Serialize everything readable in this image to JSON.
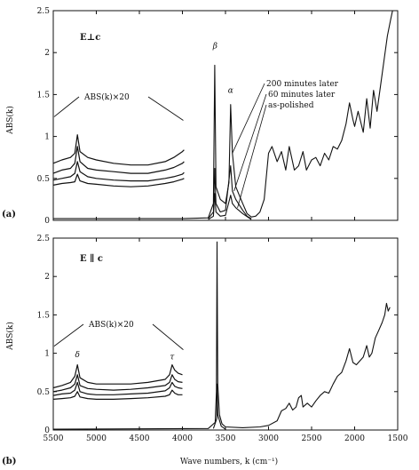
{
  "chart_data": [
    {
      "type": "line",
      "panel_label": "(a)",
      "annotation": "E⊥c",
      "inset_label": "ABS(k)×20",
      "ylabel": "ABS(k)",
      "xlim": [
        5500,
        1500
      ],
      "ylim": [
        0,
        2.5
      ],
      "x_ticks": [
        5500,
        5000,
        4500,
        4000,
        3500,
        3000,
        2500,
        2000,
        1500
      ],
      "y_ticks": [
        "0",
        "0.5",
        "1",
        "1.5",
        "2",
        "2.5"
      ],
      "peak_labels": [
        {
          "text": "β",
          "x": 3620,
          "y": 2.05
        },
        {
          "text": "α",
          "x": 3440,
          "y": 1.52
        }
      ],
      "curve_labels": [
        "200 minutes later",
        "60 minutes later",
        "as-polished"
      ],
      "series": [
        {
          "values": [
            [
              5500,
              0.02
            ],
            [
              4000,
              0.02
            ],
            [
              3700,
              0.03
            ],
            [
              3640,
              0.2
            ],
            [
              3625,
              1.85
            ],
            [
              3610,
              0.4
            ],
            [
              3560,
              0.25
            ],
            [
              3500,
              0.2
            ],
            [
              3460,
              0.45
            ],
            [
              3440,
              1.38
            ],
            [
              3420,
              0.8
            ],
            [
              3380,
              0.4
            ],
            [
              3300,
              0.2
            ],
            [
              3250,
              0.08
            ],
            [
              3200,
              0.04
            ],
            [
              3150,
              0.05
            ],
            [
              3100,
              0.1
            ],
            [
              3050,
              0.25
            ],
            [
              3000,
              0.8
            ],
            [
              2960,
              0.88
            ],
            [
              2900,
              0.7
            ],
            [
              2850,
              0.82
            ],
            [
              2800,
              0.6
            ],
            [
              2760,
              0.88
            ],
            [
              2700,
              0.6
            ],
            [
              2650,
              0.65
            ],
            [
              2600,
              0.82
            ],
            [
              2560,
              0.6
            ],
            [
              2500,
              0.72
            ],
            [
              2450,
              0.75
            ],
            [
              2400,
              0.65
            ],
            [
              2350,
              0.8
            ],
            [
              2300,
              0.72
            ],
            [
              2250,
              0.88
            ],
            [
              2200,
              0.85
            ],
            [
              2150,
              0.95
            ],
            [
              2100,
              1.15
            ],
            [
              2060,
              1.4
            ],
            [
              2020,
              1.2
            ],
            [
              2000,
              1.12
            ],
            [
              1960,
              1.3
            ],
            [
              1900,
              1.05
            ],
            [
              1860,
              1.45
            ],
            [
              1820,
              1.1
            ],
            [
              1780,
              1.55
            ],
            [
              1740,
              1.3
            ],
            [
              1700,
              1.6
            ],
            [
              1660,
              1.9
            ],
            [
              1620,
              2.2
            ],
            [
              1580,
              2.4
            ],
            [
              1560,
              2.5
            ]
          ]
        },
        {
          "values": [
            [
              3700,
              0.02
            ],
            [
              3640,
              0.1
            ],
            [
              3625,
              0.62
            ],
            [
              3610,
              0.2
            ],
            [
              3560,
              0.1
            ],
            [
              3500,
              0.12
            ],
            [
              3440,
              0.65
            ],
            [
              3420,
              0.35
            ],
            [
              3380,
              0.25
            ],
            [
              3300,
              0.12
            ],
            [
              3250,
              0.05
            ],
            [
              3200,
              0.02
            ]
          ]
        },
        {
          "values": [
            [
              3700,
              0.01
            ],
            [
              3640,
              0.05
            ],
            [
              3625,
              0.32
            ],
            [
              3610,
              0.1
            ],
            [
              3560,
              0.05
            ],
            [
              3500,
              0.06
            ],
            [
              3440,
              0.3
            ],
            [
              3420,
              0.2
            ],
            [
              3380,
              0.15
            ],
            [
              3300,
              0.08
            ],
            [
              3200,
              0.01
            ]
          ]
        }
      ],
      "inset_series": [
        {
          "values": [
            [
              5500,
              0.68
            ],
            [
              5400,
              0.72
            ],
            [
              5300,
              0.75
            ],
            [
              5250,
              0.8
            ],
            [
              5220,
              1.02
            ],
            [
              5190,
              0.82
            ],
            [
              5100,
              0.75
            ],
            [
              5000,
              0.72
            ],
            [
              4800,
              0.68
            ],
            [
              4600,
              0.66
            ],
            [
              4400,
              0.66
            ],
            [
              4200,
              0.7
            ],
            [
              4100,
              0.75
            ],
            [
              4000,
              0.82
            ],
            [
              3980,
              0.84
            ]
          ]
        },
        {
          "values": [
            [
              5500,
              0.56
            ],
            [
              5400,
              0.6
            ],
            [
              5300,
              0.62
            ],
            [
              5250,
              0.68
            ],
            [
              5220,
              0.88
            ],
            [
              5190,
              0.7
            ],
            [
              5100,
              0.62
            ],
            [
              5000,
              0.6
            ],
            [
              4800,
              0.58
            ],
            [
              4600,
              0.56
            ],
            [
              4400,
              0.56
            ],
            [
              4200,
              0.6
            ],
            [
              4100,
              0.63
            ],
            [
              4000,
              0.68
            ],
            [
              3980,
              0.7
            ]
          ]
        },
        {
          "values": [
            [
              5500,
              0.48
            ],
            [
              5400,
              0.5
            ],
            [
              5300,
              0.52
            ],
            [
              5250,
              0.56
            ],
            [
              5220,
              0.7
            ],
            [
              5190,
              0.58
            ],
            [
              5100,
              0.52
            ],
            [
              5000,
              0.5
            ],
            [
              4800,
              0.48
            ],
            [
              4600,
              0.47
            ],
            [
              4400,
              0.47
            ],
            [
              4200,
              0.5
            ],
            [
              4100,
              0.52
            ],
            [
              4000,
              0.55
            ],
            [
              3980,
              0.57
            ]
          ]
        },
        {
          "values": [
            [
              5500,
              0.42
            ],
            [
              5400,
              0.44
            ],
            [
              5300,
              0.45
            ],
            [
              5250,
              0.46
            ],
            [
              5220,
              0.55
            ],
            [
              5190,
              0.47
            ],
            [
              5100,
              0.44
            ],
            [
              5000,
              0.43
            ],
            [
              4800,
              0.41
            ],
            [
              4600,
              0.4
            ],
            [
              4400,
              0.41
            ],
            [
              4200,
              0.44
            ],
            [
              4100,
              0.46
            ],
            [
              4000,
              0.49
            ],
            [
              3980,
              0.5
            ]
          ]
        }
      ]
    },
    {
      "type": "line",
      "panel_label": "(b)",
      "annotation": "E ∥ c",
      "inset_label": "ABS(k)×20",
      "ylabel": "ABS(k)",
      "xlabel": "Wave numbers, k (cm⁻¹)",
      "xlim": [
        5500,
        1500
      ],
      "ylim": [
        0,
        2.5
      ],
      "x_ticks": [
        5500,
        5000,
        4500,
        4000,
        3500,
        3000,
        2500,
        2000,
        1500
      ],
      "y_ticks": [
        "0",
        "0.5",
        "1",
        "1.5",
        "2",
        "2.5"
      ],
      "peak_labels": [
        {
          "text": "δ",
          "x": 5220,
          "y": 0.95
        },
        {
          "text": "τ",
          "x": 4120,
          "y": 0.92
        }
      ],
      "series": [
        {
          "values": [
            [
              5500,
              0.01
            ],
            [
              3700,
              0.02
            ],
            [
              3620,
              0.1
            ],
            [
              3605,
              0.5
            ],
            [
              3598,
              2.45
            ],
            [
              3590,
              0.6
            ],
            [
              3570,
              0.2
            ],
            [
              3540,
              0.08
            ],
            [
              3500,
              0.04
            ],
            [
              3300,
              0.03
            ],
            [
              3100,
              0.04
            ],
            [
              3000,
              0.06
            ],
            [
              2900,
              0.12
            ],
            [
              2850,
              0.25
            ],
            [
              2800,
              0.28
            ],
            [
              2760,
              0.35
            ],
            [
              2720,
              0.26
            ],
            [
              2680,
              0.3
            ],
            [
              2650,
              0.42
            ],
            [
              2620,
              0.45
            ],
            [
              2600,
              0.3
            ],
            [
              2550,
              0.35
            ],
            [
              2500,
              0.3
            ],
            [
              2450,
              0.38
            ],
            [
              2400,
              0.45
            ],
            [
              2350,
              0.5
            ],
            [
              2300,
              0.48
            ],
            [
              2250,
              0.6
            ],
            [
              2200,
              0.7
            ],
            [
              2150,
              0.75
            ],
            [
              2100,
              0.9
            ],
            [
              2060,
              1.06
            ],
            [
              2020,
              0.88
            ],
            [
              1980,
              0.85
            ],
            [
              1940,
              0.9
            ],
            [
              1900,
              0.95
            ],
            [
              1860,
              1.1
            ],
            [
              1830,
              0.95
            ],
            [
              1800,
              1.0
            ],
            [
              1760,
              1.2
            ],
            [
              1720,
              1.3
            ],
            [
              1680,
              1.4
            ],
            [
              1650,
              1.5
            ],
            [
              1630,
              1.65
            ],
            [
              1610,
              1.55
            ],
            [
              1590,
              1.6
            ]
          ]
        },
        {
          "values": [
            [
              3640,
              0.02
            ],
            [
              3600,
              0.15
            ],
            [
              3598,
              0.6
            ],
            [
              3590,
              0.2
            ],
            [
              3550,
              0.05
            ],
            [
              3500,
              0.01
            ]
          ]
        }
      ],
      "inset_series": [
        {
          "values": [
            [
              5500,
              0.55
            ],
            [
              5400,
              0.58
            ],
            [
              5300,
              0.62
            ],
            [
              5250,
              0.7
            ],
            [
              5220,
              0.85
            ],
            [
              5190,
              0.68
            ],
            [
              5100,
              0.62
            ],
            [
              5000,
              0.6
            ],
            [
              4800,
              0.6
            ],
            [
              4600,
              0.6
            ],
            [
              4400,
              0.62
            ],
            [
              4200,
              0.66
            ],
            [
              4150,
              0.72
            ],
            [
              4120,
              0.85
            ],
            [
              4090,
              0.78
            ],
            [
              4050,
              0.74
            ],
            [
              4000,
              0.72
            ]
          ]
        },
        {
          "values": [
            [
              5500,
              0.5
            ],
            [
              5400,
              0.52
            ],
            [
              5300,
              0.55
            ],
            [
              5250,
              0.6
            ],
            [
              5220,
              0.72
            ],
            [
              5190,
              0.58
            ],
            [
              5100,
              0.54
            ],
            [
              5000,
              0.53
            ],
            [
              4800,
              0.52
            ],
            [
              4600,
              0.53
            ],
            [
              4400,
              0.55
            ],
            [
              4200,
              0.58
            ],
            [
              4150,
              0.62
            ],
            [
              4120,
              0.72
            ],
            [
              4090,
              0.66
            ],
            [
              4050,
              0.63
            ],
            [
              4000,
              0.62
            ]
          ]
        },
        {
          "values": [
            [
              5500,
              0.45
            ],
            [
              5400,
              0.47
            ],
            [
              5300,
              0.48
            ],
            [
              5250,
              0.52
            ],
            [
              5220,
              0.62
            ],
            [
              5190,
              0.5
            ],
            [
              5100,
              0.47
            ],
            [
              5000,
              0.46
            ],
            [
              4800,
              0.46
            ],
            [
              4600,
              0.47
            ],
            [
              4400,
              0.48
            ],
            [
              4200,
              0.51
            ],
            [
              4150,
              0.55
            ],
            [
              4120,
              0.62
            ],
            [
              4090,
              0.57
            ],
            [
              4050,
              0.55
            ],
            [
              4000,
              0.54
            ]
          ]
        },
        {
          "values": [
            [
              5500,
              0.4
            ],
            [
              5400,
              0.41
            ],
            [
              5300,
              0.42
            ],
            [
              5250,
              0.44
            ],
            [
              5220,
              0.5
            ],
            [
              5190,
              0.43
            ],
            [
              5100,
              0.41
            ],
            [
              5000,
              0.4
            ],
            [
              4800,
              0.4
            ],
            [
              4600,
              0.41
            ],
            [
              4400,
              0.42
            ],
            [
              4200,
              0.44
            ],
            [
              4150,
              0.46
            ],
            [
              4120,
              0.52
            ],
            [
              4090,
              0.48
            ],
            [
              4050,
              0.46
            ],
            [
              4000,
              0.46
            ]
          ]
        }
      ]
    }
  ]
}
